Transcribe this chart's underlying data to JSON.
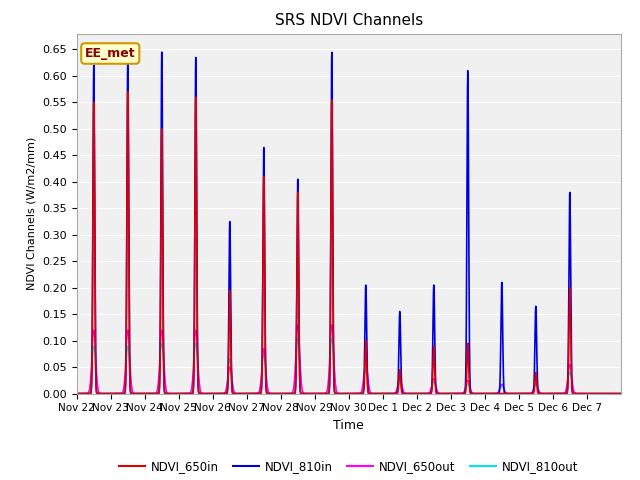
{
  "title": "SRS NDVI Channels",
  "ylabel": "NDVI Channels (W/m2/mm)",
  "xlabel": "Time",
  "annotation": "EE_met",
  "ylim": [
    0.0,
    0.68
  ],
  "yticks": [
    0.0,
    0.05,
    0.1,
    0.15,
    0.2,
    0.25,
    0.3,
    0.35,
    0.4,
    0.45,
    0.5,
    0.55,
    0.6,
    0.65
  ],
  "fig_bg_color": "#ffffff",
  "plot_bg_color": "#f0f0f0",
  "colors": {
    "NDVI_650in": "#dd0000",
    "NDVI_810in": "#0000dd",
    "NDVI_650out": "#ff00ff",
    "NDVI_810out": "#00e5ff"
  },
  "legend_labels": [
    "NDVI_650in",
    "NDVI_810in",
    "NDVI_650out",
    "NDVI_810out"
  ],
  "xtick_labels": [
    "Nov 22",
    "Nov 23",
    "Nov 24",
    "Nov 25",
    "Nov 26",
    "Nov 27",
    "Nov 28",
    "Nov 29",
    "Nov 30",
    "Dec 1",
    "Dec 2",
    "Dec 3",
    "Dec 4",
    "Dec 5",
    "Dec 6",
    "Dec 7"
  ],
  "peaks_810in": [
    0.62,
    0.63,
    0.645,
    0.635,
    0.325,
    0.465,
    0.405,
    0.645,
    0.205,
    0.155,
    0.205,
    0.61,
    0.21,
    0.165,
    0.38,
    0.0
  ],
  "peaks_650in": [
    0.55,
    0.57,
    0.5,
    0.56,
    0.195,
    0.41,
    0.38,
    0.555,
    0.1,
    0.045,
    0.09,
    0.095,
    0.0,
    0.04,
    0.2,
    0.0
  ],
  "peaks_650out": [
    0.12,
    0.12,
    0.12,
    0.12,
    0.05,
    0.085,
    0.13,
    0.13,
    0.06,
    0.03,
    0.028,
    0.025,
    0.018,
    0.02,
    0.055,
    0.0
  ],
  "peaks_810out": [
    0.09,
    0.09,
    0.095,
    0.095,
    0.065,
    0.075,
    0.105,
    0.105,
    0.045,
    0.022,
    0.022,
    0.018,
    0.015,
    0.015,
    0.04,
    0.0
  ],
  "sigma_in": 0.025,
  "sigma_out": 0.055,
  "total_days": 16
}
